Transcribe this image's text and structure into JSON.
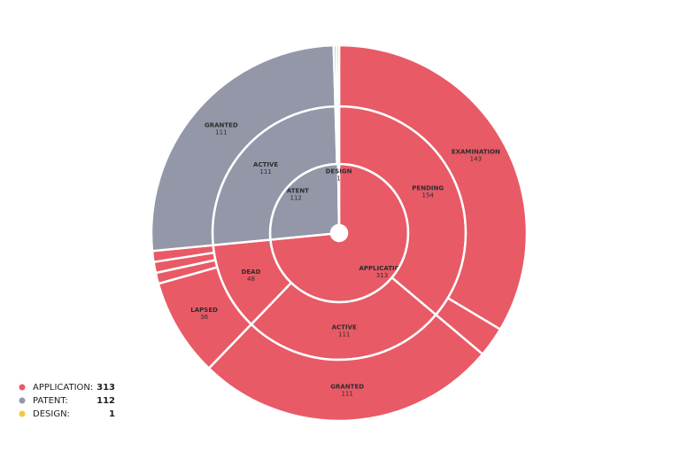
{
  "chart_data": {
    "type": "sunburst",
    "nodes": [
      {
        "name": "APPLICATION",
        "value": 313,
        "color": "#e85a66",
        "children": [
          {
            "name": "PENDING",
            "value": 154,
            "children": [
              {
                "name": "EXAMINATION",
                "value": 143
              },
              {
                "name": null,
                "value": 11
              }
            ]
          },
          {
            "name": "ACTIVE",
            "value": 111,
            "children": [
              {
                "name": "GRANTED",
                "value": 111
              }
            ]
          },
          {
            "name": "DEAD",
            "value": 48,
            "children": [
              {
                "name": "LAPSED",
                "value": 36
              },
              {
                "name": null,
                "value": 4
              },
              {
                "name": null,
                "value": 4
              },
              {
                "name": null,
                "value": 4
              }
            ]
          }
        ]
      },
      {
        "name": "PATENT",
        "value": 112,
        "color": "#9497a8",
        "children": [
          {
            "name": "ACTIVE",
            "value": 111,
            "children": [
              {
                "name": "GRANTED",
                "value": 111
              }
            ]
          },
          {
            "name": null,
            "value": 1,
            "children": [
              {
                "name": null,
                "value": 1
              }
            ]
          }
        ]
      },
      {
        "name": "DESIGN",
        "value": 1,
        "color": "#f5c842",
        "children": [
          {
            "name": null,
            "value": 1,
            "children": [
              {
                "name": null,
                "value": 1
              }
            ]
          }
        ]
      }
    ],
    "legend_labels": [
      "APPLICATION:",
      "PATENT:",
      "DESIGN:"
    ]
  }
}
